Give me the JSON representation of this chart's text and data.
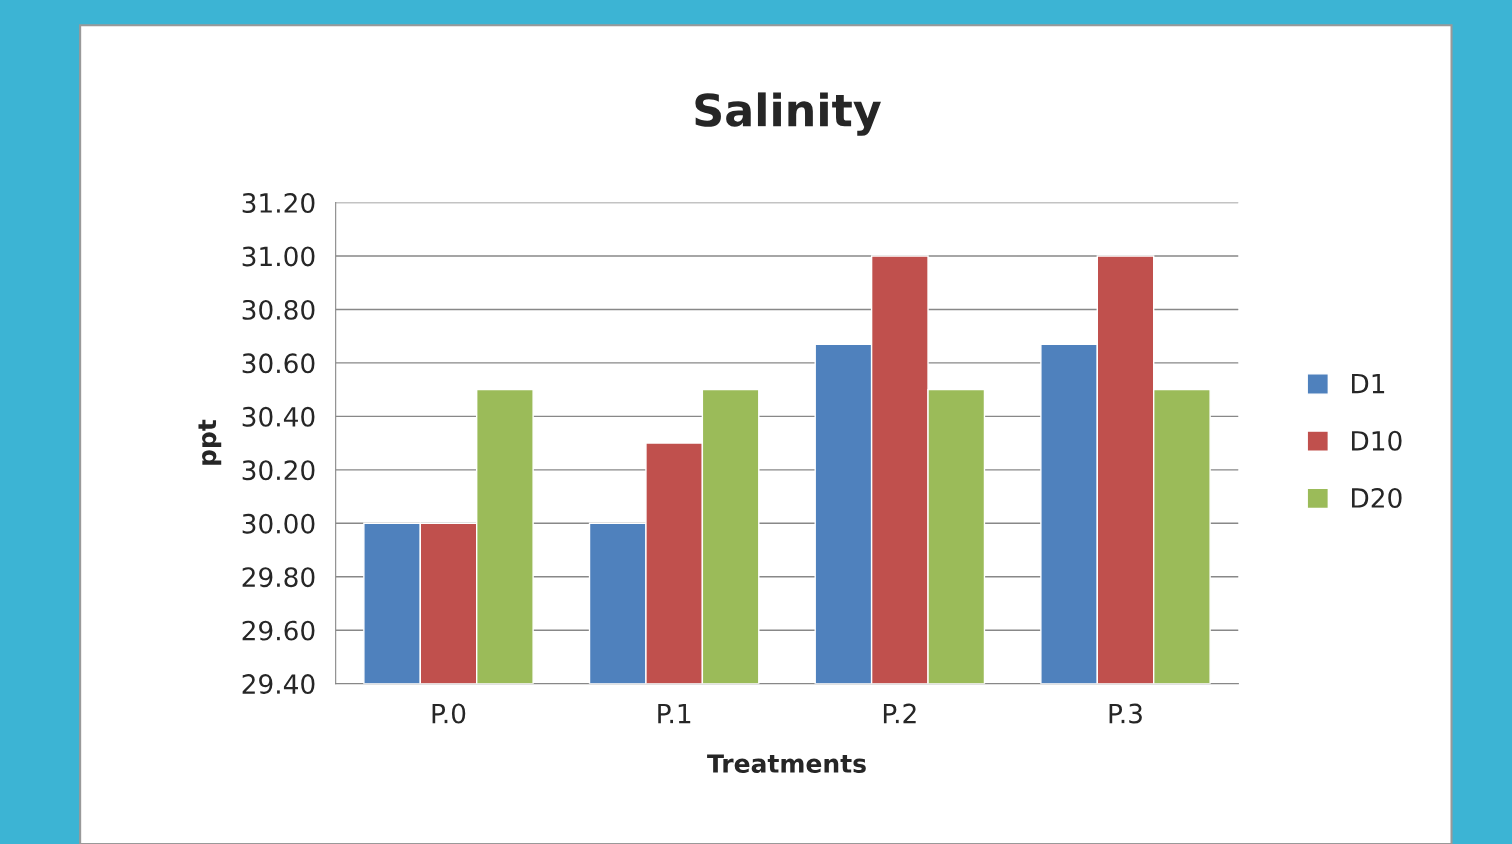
{
  "chart_data": {
    "type": "bar",
    "title": "Salinity",
    "xlabel": "Treatments",
    "ylabel": "ppt",
    "categories": [
      "P.0",
      "P.1",
      "P.2",
      "P.3"
    ],
    "series": [
      {
        "name": "D1",
        "color": "#4f81bd",
        "values": [
          30.0,
          30.0,
          30.67,
          30.67
        ]
      },
      {
        "name": "D10",
        "color": "#c0504d",
        "values": [
          30.0,
          30.3,
          31.0,
          31.0
        ]
      },
      {
        "name": "D20",
        "color": "#9bbb59",
        "values": [
          30.5,
          30.5,
          30.5,
          30.5
        ]
      }
    ],
    "ylim": [
      29.4,
      31.2
    ],
    "yticks": [
      {
        "value": 29.4,
        "label": "29.40"
      },
      {
        "value": 29.6,
        "label": "29.60"
      },
      {
        "value": 29.8,
        "label": "29.80"
      },
      {
        "value": 30.0,
        "label": "30.00"
      },
      {
        "value": 30.2,
        "label": "30.20"
      },
      {
        "value": 30.4,
        "label": "30.40"
      },
      {
        "value": 30.6,
        "label": "30.60"
      },
      {
        "value": 30.8,
        "label": "30.80"
      },
      {
        "value": 31.0,
        "label": "31.00"
      },
      {
        "value": 31.2,
        "label": "31.20"
      }
    ],
    "grid": "y",
    "legend": "right"
  }
}
